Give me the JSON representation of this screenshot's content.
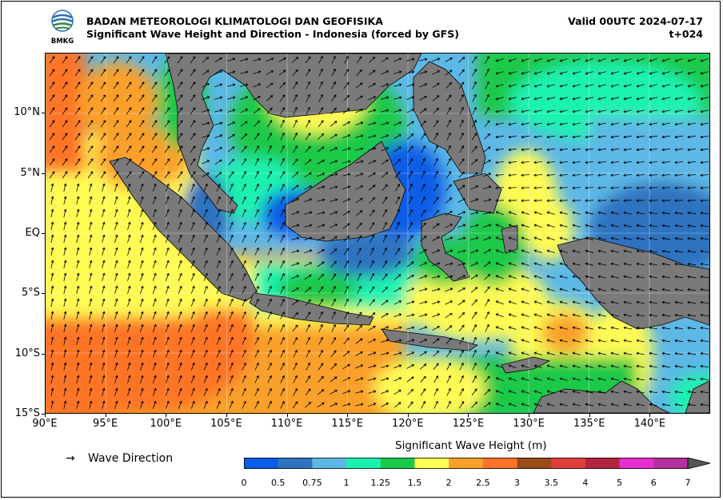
{
  "header": {
    "agency": "BADAN METEOROLOGI KLIMATOLOGI DAN GEOFISIKA",
    "product": "Significant Wave Height and Direction - Indonesia (forced by GFS)",
    "valid": "Valid 00UTC 2024-07-17",
    "lead": "t+024",
    "logo_text": "BMKG"
  },
  "map": {
    "lon_range": [
      90,
      145
    ],
    "lat_range": [
      -15,
      15
    ],
    "x_ticks": [
      "90°E",
      "95°E",
      "100°E",
      "105°E",
      "110°E",
      "115°E",
      "120°E",
      "125°E",
      "130°E",
      "135°E",
      "140°E"
    ],
    "y_ticks": [
      "10°N",
      "5°N",
      "EQ",
      "5°S",
      "10°S",
      "15°S"
    ],
    "land_color": "#7a7a7a",
    "grid": true
  },
  "legend": {
    "arrow_symbol": "→",
    "arrow_label": "Wave Direction"
  },
  "colorbar": {
    "title": "Significant Wave Height (m)",
    "labels": [
      "0",
      "0.5",
      "0.75",
      "1",
      "1.25",
      "1.5",
      "2",
      "2.5",
      "3",
      "3.5",
      "4",
      "5",
      "6",
      "7"
    ],
    "colors": [
      "#0a5de6",
      "#2e73bf",
      "#5db8e6",
      "#1cf2b0",
      "#1ac94a",
      "#fffb55",
      "#f9a02b",
      "#ff7428",
      "#9b4b17",
      "#e0403c",
      "#b3243f",
      "#e62fcf",
      "#b4309e"
    ],
    "extend_color": "#555555"
  }
}
